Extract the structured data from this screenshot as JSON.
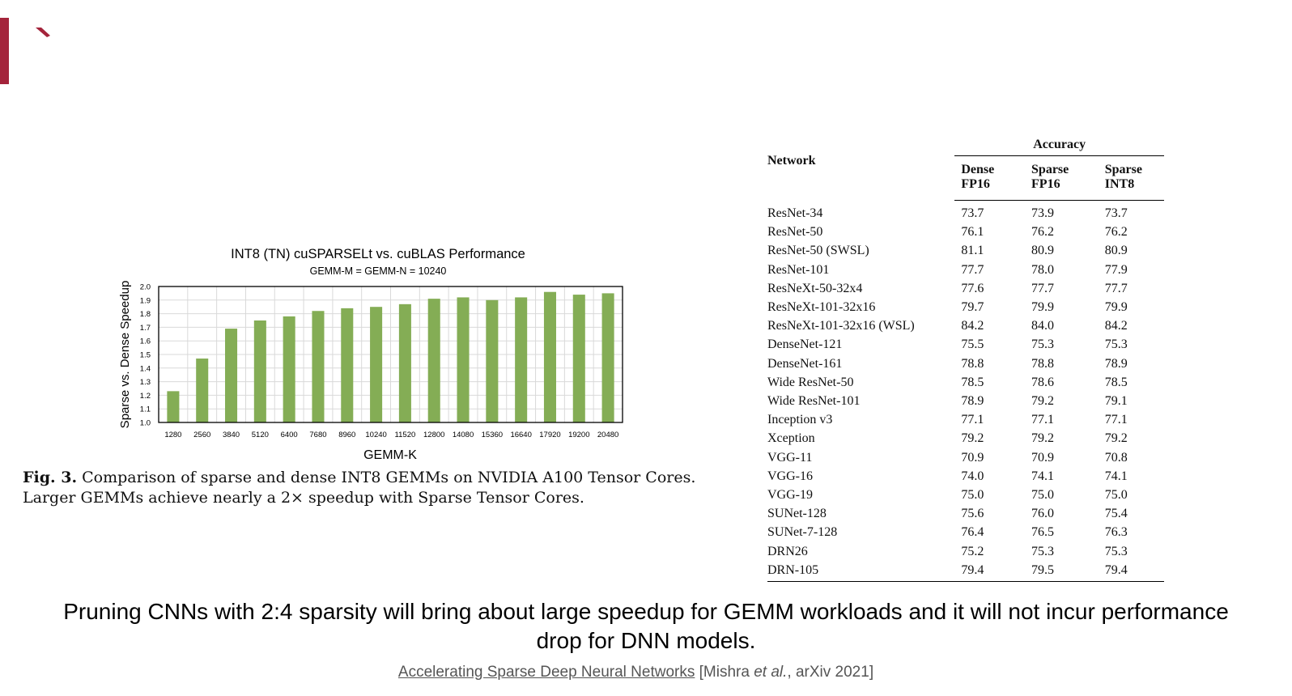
{
  "colors": {
    "accent": "#a4243b",
    "bar": "#84ad55",
    "grid": "#d9d9d9"
  },
  "figure": {
    "label": "Fig. 3.",
    "text": "Comparison of sparse and dense INT8 GEMMs on NVIDIA A100 Tensor Cores. Larger GEMMs achieve nearly a 2× speedup with Sparse Tensor Cores."
  },
  "chart_data": {
    "type": "bar",
    "title": "INT8 (TN) cuSPARSELt vs. cuBLAS Performance",
    "subtitle": "GEMM-M = GEMM-N = 10240",
    "xlabel": "GEMM-K",
    "ylabel": "Sparse vs. Dense Speedup",
    "ylim": [
      1.0,
      2.0
    ],
    "yticks": [
      "1.0",
      "1.1",
      "1.2",
      "1.3",
      "1.4",
      "1.5",
      "1.6",
      "1.7",
      "1.8",
      "1.9",
      "2.0"
    ],
    "grid": true,
    "categories": [
      "1280",
      "2560",
      "3840",
      "5120",
      "6400",
      "7680",
      "8960",
      "10240",
      "11520",
      "12800",
      "14080",
      "15360",
      "16640",
      "17920",
      "19200",
      "20480"
    ],
    "values": [
      1.23,
      1.47,
      1.69,
      1.75,
      1.78,
      1.82,
      1.84,
      1.85,
      1.87,
      1.91,
      1.92,
      1.9,
      1.92,
      1.96,
      1.94,
      1.95
    ]
  },
  "table": {
    "group_header": "Accuracy",
    "network_header": "Network",
    "columns": [
      {
        "line1": "Dense",
        "line2": "FP16"
      },
      {
        "line1": "Sparse",
        "line2": "FP16"
      },
      {
        "line1": "Sparse",
        "line2": "INT8"
      }
    ],
    "rows": [
      {
        "network": "ResNet-34",
        "dense_fp16": "73.7",
        "sparse_fp16": "73.9",
        "sparse_int8": "73.7"
      },
      {
        "network": "ResNet-50",
        "dense_fp16": "76.1",
        "sparse_fp16": "76.2",
        "sparse_int8": "76.2"
      },
      {
        "network": "ResNet-50 (SWSL)",
        "dense_fp16": "81.1",
        "sparse_fp16": "80.9",
        "sparse_int8": "80.9"
      },
      {
        "network": "ResNet-101",
        "dense_fp16": "77.7",
        "sparse_fp16": "78.0",
        "sparse_int8": "77.9"
      },
      {
        "network": "ResNeXt-50-32x4",
        "dense_fp16": "77.6",
        "sparse_fp16": "77.7",
        "sparse_int8": "77.7"
      },
      {
        "network": "ResNeXt-101-32x16",
        "dense_fp16": "79.7",
        "sparse_fp16": "79.9",
        "sparse_int8": "79.9"
      },
      {
        "network": "ResNeXt-101-32x16 (WSL)",
        "dense_fp16": "84.2",
        "sparse_fp16": "84.0",
        "sparse_int8": "84.2"
      },
      {
        "network": "DenseNet-121",
        "dense_fp16": "75.5",
        "sparse_fp16": "75.3",
        "sparse_int8": "75.3"
      },
      {
        "network": "DenseNet-161",
        "dense_fp16": "78.8",
        "sparse_fp16": "78.8",
        "sparse_int8": "78.9"
      },
      {
        "network": "Wide ResNet-50",
        "dense_fp16": "78.5",
        "sparse_fp16": "78.6",
        "sparse_int8": "78.5"
      },
      {
        "network": "Wide ResNet-101",
        "dense_fp16": "78.9",
        "sparse_fp16": "79.2",
        "sparse_int8": "79.1"
      },
      {
        "network": "Inception v3",
        "dense_fp16": "77.1",
        "sparse_fp16": "77.1",
        "sparse_int8": "77.1"
      },
      {
        "network": "Xception",
        "dense_fp16": "79.2",
        "sparse_fp16": "79.2",
        "sparse_int8": "79.2"
      },
      {
        "network": "VGG-11",
        "dense_fp16": "70.9",
        "sparse_fp16": "70.9",
        "sparse_int8": "70.8"
      },
      {
        "network": "VGG-16",
        "dense_fp16": "74.0",
        "sparse_fp16": "74.1",
        "sparse_int8": "74.1"
      },
      {
        "network": "VGG-19",
        "dense_fp16": "75.0",
        "sparse_fp16": "75.0",
        "sparse_int8": "75.0"
      },
      {
        "network": "SUNet-128",
        "dense_fp16": "75.6",
        "sparse_fp16": "76.0",
        "sparse_int8": "75.4"
      },
      {
        "network": "SUNet-7-128",
        "dense_fp16": "76.4",
        "sparse_fp16": "76.5",
        "sparse_int8": "76.3"
      },
      {
        "network": "DRN26",
        "dense_fp16": "75.2",
        "sparse_fp16": "75.3",
        "sparse_int8": "75.3"
      },
      {
        "network": "DRN-105",
        "dense_fp16": "79.4",
        "sparse_fp16": "79.5",
        "sparse_int8": "79.4"
      }
    ]
  },
  "conclusion": "Pruning CNNs with 2:4 sparsity will bring about large speedup for GEMM workloads and it will not incur performance drop for DNN models.",
  "citation": {
    "link_text": "Accelerating Sparse Deep Neural Networks",
    "open": "[Mishra ",
    "etal": "et al.",
    "rest": ", arXiv 2021]"
  }
}
